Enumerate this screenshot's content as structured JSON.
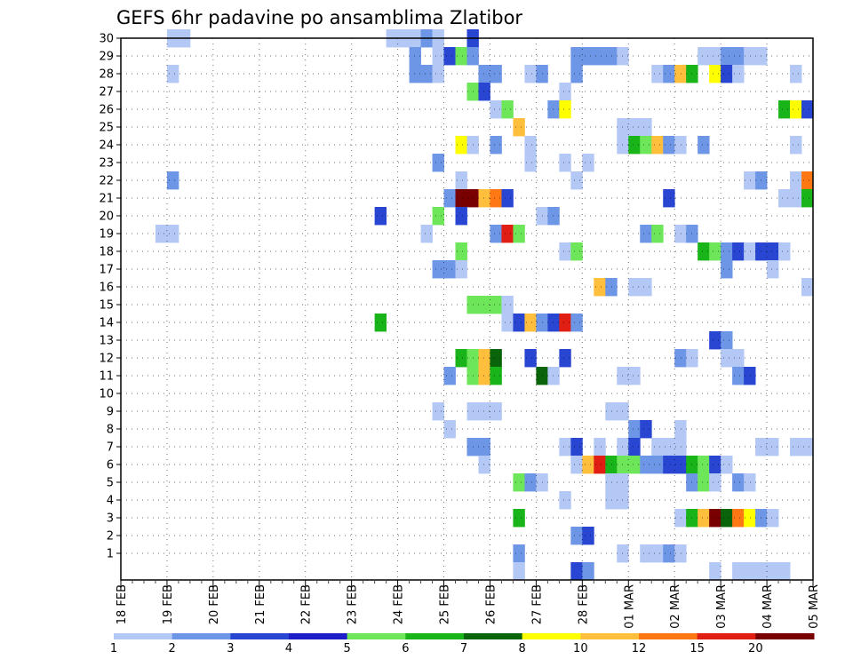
{
  "chart_data": {
    "type": "heatmap",
    "title": "GEFS 6hr padavine po ansamblima Zlatibor",
    "xlabel": "",
    "ylabel": "",
    "x_tick_labels": [
      "18 FEB",
      "19 FEB",
      "20 FEB",
      "21 FEB",
      "22 FEB",
      "23 FEB",
      "24 FEB",
      "25 FEB",
      "26 FEB",
      "27 FEB",
      "28 FEB",
      "01 MAR",
      "02 MAR",
      "03 MAR",
      "04 MAR",
      "05 MAR"
    ],
    "y_tick_labels": [
      "1",
      "2",
      "3",
      "4",
      "5",
      "6",
      "7",
      "8",
      "9",
      "10",
      "11",
      "12",
      "13",
      "14",
      "15",
      "16",
      "17",
      "18",
      "19",
      "20",
      "21",
      "22",
      "23",
      "24",
      "25",
      "26",
      "27",
      "28",
      "29",
      "30"
    ],
    "grid": true,
    "x_unit": "6-hour steps",
    "colorbar_labels": [
      "1",
      "2",
      "3",
      "4",
      "5",
      "6",
      "7",
      "8",
      "10",
      "12",
      "15",
      "20"
    ],
    "colorbar_colors": [
      "#b4c8f5",
      "#6e96e6",
      "#2846d2",
      "#1e1ec8",
      "#6ee65a",
      "#19b419",
      "#0a640a",
      "#ffff00",
      "#ffbe3c",
      "#ff7814",
      "#e11e14",
      "#780000"
    ],
    "cells": [
      [
        4,
        30,
        1
      ],
      [
        5,
        30,
        1
      ],
      [
        23,
        30,
        1
      ],
      [
        24,
        30,
        1
      ],
      [
        25,
        30,
        1
      ],
      [
        26,
        30,
        2
      ],
      [
        27,
        30,
        1
      ],
      [
        30,
        30,
        3
      ],
      [
        25,
        29,
        2
      ],
      [
        27,
        29,
        1
      ],
      [
        28,
        29,
        3
      ],
      [
        29,
        29,
        5
      ],
      [
        30,
        29,
        2
      ],
      [
        39,
        29,
        2
      ],
      [
        40,
        29,
        2
      ],
      [
        41,
        29,
        2
      ],
      [
        42,
        29,
        2
      ],
      [
        43,
        29,
        1
      ],
      [
        50,
        29,
        1
      ],
      [
        51,
        29,
        1
      ],
      [
        52,
        29,
        2
      ],
      [
        53,
        29,
        2
      ],
      [
        54,
        29,
        1
      ],
      [
        55,
        29,
        1
      ],
      [
        4,
        28,
        1
      ],
      [
        25,
        28,
        2
      ],
      [
        26,
        28,
        2
      ],
      [
        27,
        28,
        1
      ],
      [
        31,
        28,
        2
      ],
      [
        32,
        28,
        2
      ],
      [
        35,
        28,
        1
      ],
      [
        36,
        28,
        2
      ],
      [
        39,
        28,
        2
      ],
      [
        46,
        28,
        1
      ],
      [
        47,
        28,
        2
      ],
      [
        48,
        28,
        10
      ],
      [
        49,
        28,
        6
      ],
      [
        51,
        28,
        8
      ],
      [
        52,
        28,
        3
      ],
      [
        53,
        28,
        1
      ],
      [
        58,
        28,
        1
      ],
      [
        30,
        27,
        5
      ],
      [
        31,
        27,
        3
      ],
      [
        38,
        27,
        1
      ],
      [
        32,
        26,
        1
      ],
      [
        33,
        26,
        5
      ],
      [
        37,
        26,
        2
      ],
      [
        38,
        26,
        8
      ],
      [
        57,
        26,
        6
      ],
      [
        58,
        26,
        8
      ],
      [
        59,
        26,
        3
      ],
      [
        34,
        25,
        10
      ],
      [
        43,
        25,
        1
      ],
      [
        44,
        25,
        1
      ],
      [
        45,
        25,
        1
      ],
      [
        29,
        24,
        8
      ],
      [
        30,
        24,
        1
      ],
      [
        32,
        24,
        2
      ],
      [
        35,
        24,
        1
      ],
      [
        43,
        24,
        1
      ],
      [
        44,
        24,
        6
      ],
      [
        45,
        24,
        5
      ],
      [
        46,
        24,
        10
      ],
      [
        47,
        24,
        2
      ],
      [
        48,
        24,
        1
      ],
      [
        50,
        24,
        2
      ],
      [
        58,
        24,
        1
      ],
      [
        27,
        23,
        2
      ],
      [
        35,
        23,
        1
      ],
      [
        38,
        23,
        1
      ],
      [
        40,
        23,
        1
      ],
      [
        4,
        22,
        2
      ],
      [
        29,
        22,
        1
      ],
      [
        39,
        22,
        1
      ],
      [
        54,
        22,
        1
      ],
      [
        55,
        22,
        2
      ],
      [
        58,
        22,
        1
      ],
      [
        59,
        22,
        12
      ],
      [
        28,
        21,
        2
      ],
      [
        29,
        21,
        20
      ],
      [
        30,
        21,
        20
      ],
      [
        31,
        21,
        10
      ],
      [
        32,
        21,
        12
      ],
      [
        33,
        21,
        3
      ],
      [
        47,
        21,
        3
      ],
      [
        57,
        21,
        1
      ],
      [
        58,
        21,
        1
      ],
      [
        59,
        21,
        6
      ],
      [
        22,
        20,
        3
      ],
      [
        27,
        20,
        5
      ],
      [
        29,
        20,
        3
      ],
      [
        36,
        20,
        1
      ],
      [
        37,
        20,
        2
      ],
      [
        3,
        19,
        1
      ],
      [
        4,
        19,
        1
      ],
      [
        26,
        19,
        1
      ],
      [
        32,
        19,
        2
      ],
      [
        33,
        19,
        15
      ],
      [
        34,
        19,
        5
      ],
      [
        45,
        19,
        2
      ],
      [
        46,
        19,
        5
      ],
      [
        48,
        19,
        1
      ],
      [
        49,
        19,
        2
      ],
      [
        29,
        18,
        5
      ],
      [
        38,
        18,
        1
      ],
      [
        39,
        18,
        5
      ],
      [
        50,
        18,
        6
      ],
      [
        51,
        18,
        5
      ],
      [
        52,
        18,
        2
      ],
      [
        53,
        18,
        3
      ],
      [
        54,
        18,
        1
      ],
      [
        55,
        18,
        3
      ],
      [
        56,
        18,
        3
      ],
      [
        57,
        18,
        1
      ],
      [
        27,
        17,
        2
      ],
      [
        28,
        17,
        2
      ],
      [
        29,
        17,
        1
      ],
      [
        52,
        17,
        2
      ],
      [
        56,
        17,
        1
      ],
      [
        41,
        16,
        10
      ],
      [
        42,
        16,
        2
      ],
      [
        44,
        16,
        1
      ],
      [
        45,
        16,
        1
      ],
      [
        59,
        16,
        1
      ],
      [
        30,
        15,
        5
      ],
      [
        31,
        15,
        5
      ],
      [
        32,
        15,
        5
      ],
      [
        33,
        15,
        1
      ],
      [
        22,
        14,
        6
      ],
      [
        33,
        14,
        1
      ],
      [
        34,
        14,
        3
      ],
      [
        35,
        14,
        10
      ],
      [
        36,
        14,
        2
      ],
      [
        37,
        14,
        3
      ],
      [
        38,
        14,
        15
      ],
      [
        39,
        14,
        2
      ],
      [
        51,
        13,
        3
      ],
      [
        52,
        13,
        2
      ],
      [
        29,
        12,
        6
      ],
      [
        30,
        12,
        5
      ],
      [
        31,
        12,
        10
      ],
      [
        32,
        12,
        7
      ],
      [
        35,
        12,
        3
      ],
      [
        38,
        12,
        3
      ],
      [
        48,
        12,
        2
      ],
      [
        49,
        12,
        1
      ],
      [
        52,
        12,
        1
      ],
      [
        53,
        12,
        1
      ],
      [
        28,
        11,
        2
      ],
      [
        30,
        11,
        5
      ],
      [
        31,
        11,
        10
      ],
      [
        32,
        11,
        6
      ],
      [
        36,
        11,
        7
      ],
      [
        37,
        11,
        1
      ],
      [
        43,
        11,
        1
      ],
      [
        44,
        11,
        1
      ],
      [
        53,
        11,
        2
      ],
      [
        54,
        11,
        3
      ],
      [
        27,
        9,
        1
      ],
      [
        30,
        9,
        1
      ],
      [
        31,
        9,
        1
      ],
      [
        32,
        9,
        1
      ],
      [
        42,
        9,
        1
      ],
      [
        43,
        9,
        1
      ],
      [
        28,
        8,
        1
      ],
      [
        44,
        8,
        2
      ],
      [
        45,
        8,
        3
      ],
      [
        48,
        8,
        1
      ],
      [
        30,
        7,
        2
      ],
      [
        31,
        7,
        2
      ],
      [
        38,
        7,
        1
      ],
      [
        39,
        7,
        3
      ],
      [
        41,
        7,
        1
      ],
      [
        43,
        7,
        1
      ],
      [
        44,
        7,
        3
      ],
      [
        46,
        7,
        1
      ],
      [
        47,
        7,
        1
      ],
      [
        48,
        7,
        1
      ],
      [
        55,
        7,
        1
      ],
      [
        56,
        7,
        1
      ],
      [
        58,
        7,
        1
      ],
      [
        59,
        7,
        1
      ],
      [
        31,
        6,
        1
      ],
      [
        39,
        6,
        1
      ],
      [
        40,
        6,
        10
      ],
      [
        41,
        6,
        15
      ],
      [
        42,
        6,
        6
      ],
      [
        43,
        6,
        5
      ],
      [
        44,
        6,
        5
      ],
      [
        45,
        6,
        2
      ],
      [
        46,
        6,
        2
      ],
      [
        47,
        6,
        3
      ],
      [
        48,
        6,
        3
      ],
      [
        49,
        6,
        6
      ],
      [
        50,
        6,
        5
      ],
      [
        51,
        6,
        3
      ],
      [
        52,
        6,
        1
      ],
      [
        34,
        5,
        5
      ],
      [
        35,
        5,
        2
      ],
      [
        36,
        5,
        1
      ],
      [
        42,
        5,
        1
      ],
      [
        43,
        5,
        1
      ],
      [
        49,
        5,
        2
      ],
      [
        50,
        5,
        5
      ],
      [
        51,
        5,
        1
      ],
      [
        53,
        5,
        2
      ],
      [
        54,
        5,
        1
      ],
      [
        38,
        4,
        1
      ],
      [
        42,
        4,
        1
      ],
      [
        43,
        4,
        1
      ],
      [
        34,
        3,
        6
      ],
      [
        48,
        3,
        1
      ],
      [
        49,
        3,
        6
      ],
      [
        50,
        3,
        10
      ],
      [
        51,
        3,
        20
      ],
      [
        52,
        3,
        7
      ],
      [
        53,
        3,
        12
      ],
      [
        54,
        3,
        8
      ],
      [
        55,
        3,
        2
      ],
      [
        56,
        3,
        1
      ],
      [
        39,
        2,
        2
      ],
      [
        40,
        2,
        3
      ],
      [
        34,
        1,
        2
      ],
      [
        43,
        1,
        1
      ],
      [
        45,
        1,
        1
      ],
      [
        46,
        1,
        1
      ],
      [
        47,
        1,
        2
      ],
      [
        48,
        1,
        1
      ],
      [
        34,
        0,
        1
      ],
      [
        39,
        0,
        3
      ],
      [
        40,
        0,
        2
      ],
      [
        51,
        0,
        1
      ],
      [
        53,
        0,
        1
      ],
      [
        54,
        0,
        1
      ],
      [
        55,
        0,
        1
      ],
      [
        56,
        0,
        1
      ],
      [
        57,
        0,
        1
      ]
    ]
  }
}
